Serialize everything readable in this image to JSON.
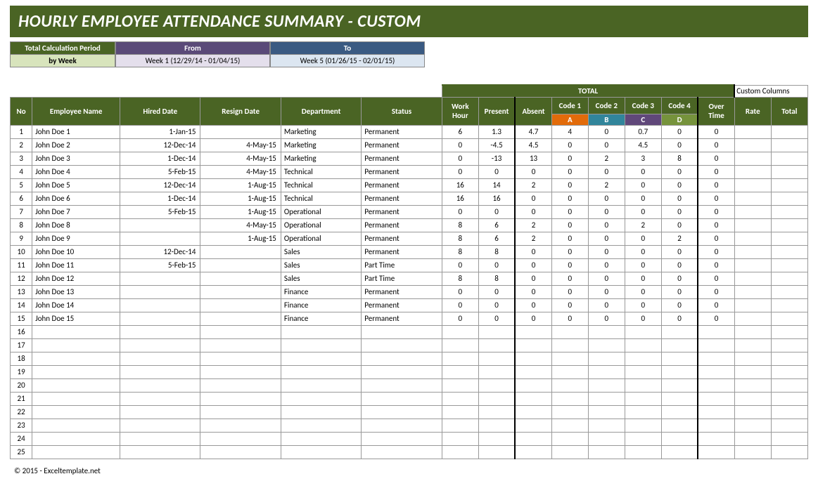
{
  "title": "HOURLY EMPLOYEE ATTENDANCE SUMMARY - CUSTOM",
  "period": {
    "calc_label": "Total Calculation Period",
    "calc_value": "by Week",
    "from_label": "From",
    "from_value": "Week 1 (12/29/14 - 01/04/15)",
    "to_label": "To",
    "to_value": "Week 5 (01/26/15 - 02/01/15)"
  },
  "headers": {
    "no": "No",
    "name": "Employee Name",
    "hired": "Hired Date",
    "resign": "Resign Date",
    "dept": "Department",
    "status": "Status",
    "total": "TOTAL",
    "custom": "Custom Columns",
    "work_hour": "Work Hour",
    "present": "Present",
    "absent": "Absent",
    "code1": "Code 1",
    "code2": "Code 2",
    "code3": "Code 3",
    "code4": "Code 4",
    "overtime": "Over Time",
    "rate": "Rate",
    "total2": "Total",
    "sub_a": "A",
    "sub_b": "B",
    "sub_c": "C",
    "sub_d": "D"
  },
  "colors": {
    "olive": "#4a6424",
    "code_a": "#e26b0a",
    "code_b": "#31859b",
    "code_c": "#60487a",
    "code_d": "#76933c"
  },
  "rows": [
    {
      "no": "1",
      "name": "John Doe 1",
      "hired": "1-Jan-15",
      "resign": "",
      "dept": "Marketing",
      "status": "Permanent",
      "wh": "6",
      "pr": "1.3",
      "ab": "4.7",
      "c1": "4",
      "c2": "0",
      "c3": "0.7",
      "c4": "0",
      "ot": "0"
    },
    {
      "no": "2",
      "name": "John Doe 2",
      "hired": "12-Dec-14",
      "resign": "4-May-15",
      "dept": "Marketing",
      "status": "Permanent",
      "wh": "0",
      "pr": "-4.5",
      "ab": "4.5",
      "c1": "0",
      "c2": "0",
      "c3": "4.5",
      "c4": "0",
      "ot": "0"
    },
    {
      "no": "3",
      "name": "John Doe 3",
      "hired": "1-Dec-14",
      "resign": "4-May-15",
      "dept": "Marketing",
      "status": "Permanent",
      "wh": "0",
      "pr": "-13",
      "ab": "13",
      "c1": "0",
      "c2": "2",
      "c3": "3",
      "c4": "8",
      "ot": "0"
    },
    {
      "no": "4",
      "name": "John Doe 4",
      "hired": "5-Feb-15",
      "resign": "4-May-15",
      "dept": "Technical",
      "status": "Permanent",
      "wh": "0",
      "pr": "0",
      "ab": "0",
      "c1": "0",
      "c2": "0",
      "c3": "0",
      "c4": "0",
      "ot": "0"
    },
    {
      "no": "5",
      "name": "John Doe 5",
      "hired": "12-Dec-14",
      "resign": "1-Aug-15",
      "dept": "Technical",
      "status": "Permanent",
      "wh": "16",
      "pr": "14",
      "ab": "2",
      "c1": "0",
      "c2": "2",
      "c3": "0",
      "c4": "0",
      "ot": "0"
    },
    {
      "no": "6",
      "name": "John Doe 6",
      "hired": "1-Dec-14",
      "resign": "1-Aug-15",
      "dept": "Technical",
      "status": "Permanent",
      "wh": "16",
      "pr": "16",
      "ab": "0",
      "c1": "0",
      "c2": "0",
      "c3": "0",
      "c4": "0",
      "ot": "0"
    },
    {
      "no": "7",
      "name": "John Doe 7",
      "hired": "5-Feb-15",
      "resign": "1-Aug-15",
      "dept": "Operational",
      "status": "Permanent",
      "wh": "0",
      "pr": "0",
      "ab": "0",
      "c1": "0",
      "c2": "0",
      "c3": "0",
      "c4": "0",
      "ot": "0"
    },
    {
      "no": "8",
      "name": "John Doe 8",
      "hired": "",
      "resign": "4-May-15",
      "dept": "Operational",
      "status": "Permanent",
      "wh": "8",
      "pr": "6",
      "ab": "2",
      "c1": "0",
      "c2": "0",
      "c3": "2",
      "c4": "0",
      "ot": "0"
    },
    {
      "no": "9",
      "name": "John Doe 9",
      "hired": "",
      "resign": "1-Aug-15",
      "dept": "Operational",
      "status": "Permanent",
      "wh": "8",
      "pr": "6",
      "ab": "2",
      "c1": "0",
      "c2": "0",
      "c3": "0",
      "c4": "2",
      "ot": "0"
    },
    {
      "no": "10",
      "name": "John Doe 10",
      "hired": "12-Dec-14",
      "resign": "",
      "dept": "Sales",
      "status": "Permanent",
      "wh": "8",
      "pr": "8",
      "ab": "0",
      "c1": "0",
      "c2": "0",
      "c3": "0",
      "c4": "0",
      "ot": "0"
    },
    {
      "no": "11",
      "name": "John Doe 11",
      "hired": "5-Feb-15",
      "resign": "",
      "dept": "Sales",
      "status": "Part Time",
      "wh": "0",
      "pr": "0",
      "ab": "0",
      "c1": "0",
      "c2": "0",
      "c3": "0",
      "c4": "0",
      "ot": "0"
    },
    {
      "no": "12",
      "name": "John Doe 12",
      "hired": "",
      "resign": "",
      "dept": "Sales",
      "status": "Part Time",
      "wh": "8",
      "pr": "8",
      "ab": "0",
      "c1": "0",
      "c2": "0",
      "c3": "0",
      "c4": "0",
      "ot": "0"
    },
    {
      "no": "13",
      "name": "John Doe 13",
      "hired": "",
      "resign": "",
      "dept": "Finance",
      "status": "Permanent",
      "wh": "0",
      "pr": "0",
      "ab": "0",
      "c1": "0",
      "c2": "0",
      "c3": "0",
      "c4": "0",
      "ot": "0"
    },
    {
      "no": "14",
      "name": "John Doe 14",
      "hired": "",
      "resign": "",
      "dept": "Finance",
      "status": "Permanent",
      "wh": "0",
      "pr": "0",
      "ab": "0",
      "c1": "0",
      "c2": "0",
      "c3": "0",
      "c4": "0",
      "ot": "0"
    },
    {
      "no": "15",
      "name": "John Doe 15",
      "hired": "",
      "resign": "",
      "dept": "Finance",
      "status": "Permanent",
      "wh": "0",
      "pr": "0",
      "ab": "0",
      "c1": "0",
      "c2": "0",
      "c3": "0",
      "c4": "0",
      "ot": "0"
    }
  ],
  "empty_rows": [
    "16",
    "17",
    "18",
    "19",
    "20",
    "21",
    "22",
    "23",
    "24",
    "25"
  ],
  "footer": "© 2015 - Exceltemplate.net"
}
